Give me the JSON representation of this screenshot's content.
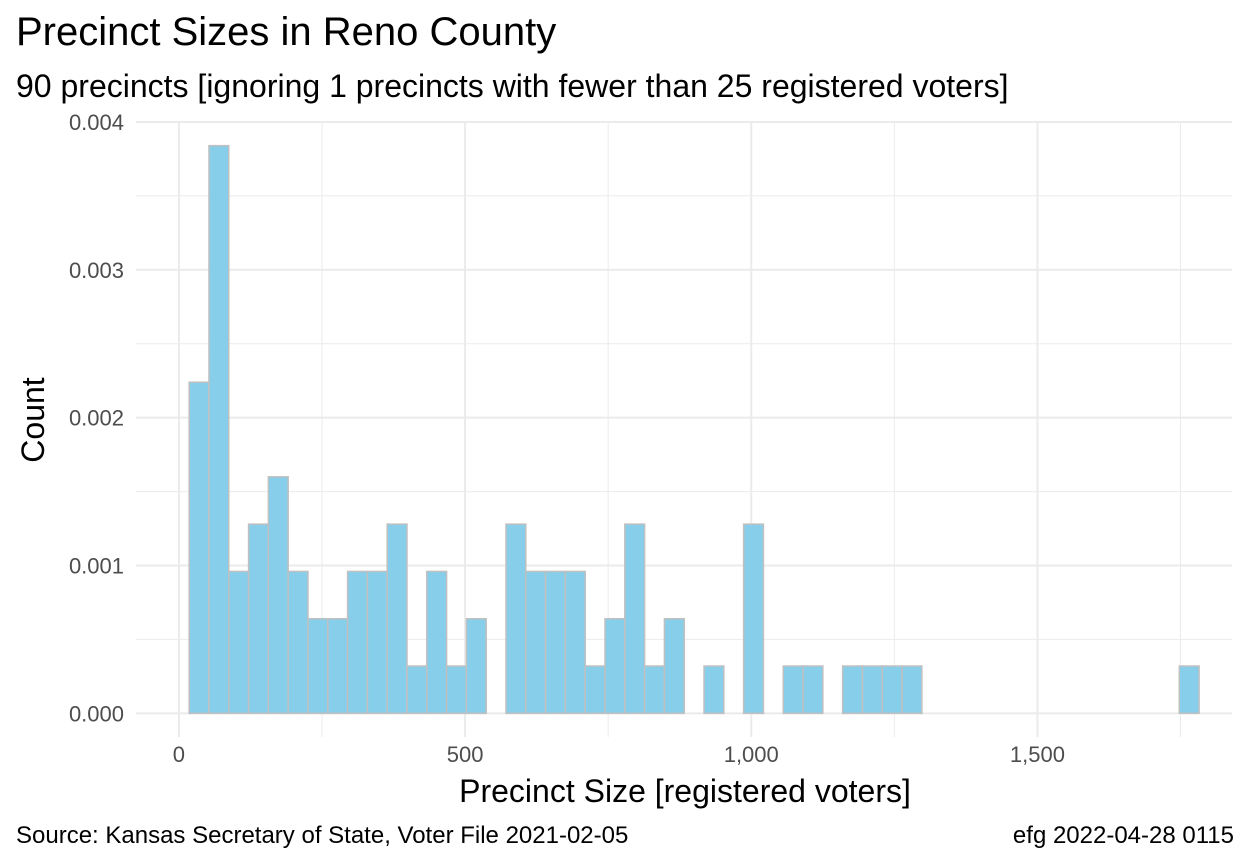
{
  "header": {
    "title": "Precinct Sizes in Reno County",
    "subtitle": "90 precincts [ignoring 1 precincts with fewer than 25 registered voters]"
  },
  "footer": {
    "source": "Source:  Kansas Secretary of State, Voter File  2021-02-05",
    "stamp": "efg 2022-04-28 0115"
  },
  "colors": {
    "bar_fill": "#87ceeb",
    "bar_stroke": "#c0c0c0",
    "grid": "#ebebeb"
  },
  "chart_data": {
    "type": "bar",
    "title": "Precinct Sizes in Reno County",
    "subtitle": "90 precincts [ignoring 1 precincts with fewer than 25 registered voters]",
    "xlabel": "Precinct Size [registered voters]",
    "ylabel": "Count",
    "xlim": [
      -75,
      1840
    ],
    "ylim": [
      -0.00016,
      0.004
    ],
    "grid": true,
    "x_ticks": [
      {
        "value": 0,
        "label": "0"
      },
      {
        "value": 500,
        "label": "500"
      },
      {
        "value": 1000,
        "label": "1,000"
      },
      {
        "value": 1500,
        "label": "1,500"
      }
    ],
    "y_ticks": [
      {
        "value": 0,
        "label": "0.000"
      },
      {
        "value": 0.001,
        "label": "0.001"
      },
      {
        "value": 0.002,
        "label": "0.002"
      },
      {
        "value": 0.003,
        "label": "0.003"
      },
      {
        "value": 0.004,
        "label": "0.004"
      }
    ],
    "bin_width": 34.6,
    "bin_start": 17.9,
    "values": [
      0.00224,
      0.00384,
      0.00096,
      0.00128,
      0.0016,
      0.00096,
      0.00064,
      0.00064,
      0.00096,
      0.00096,
      0.00128,
      0.00032,
      0.00096,
      0.00032,
      0.00064,
      0,
      0.00128,
      0.00096,
      0.00096,
      0.00096,
      0.00032,
      0.00064,
      0.00128,
      0.00032,
      0.00064,
      0,
      0.00032,
      0,
      0.00128,
      0,
      0.00032,
      0.00032,
      0,
      0.00032,
      0.00032,
      0.00032,
      0.00032,
      0,
      0,
      0,
      0,
      0,
      0,
      0,
      0,
      0,
      0,
      0,
      0,
      0,
      0.00032
    ]
  }
}
